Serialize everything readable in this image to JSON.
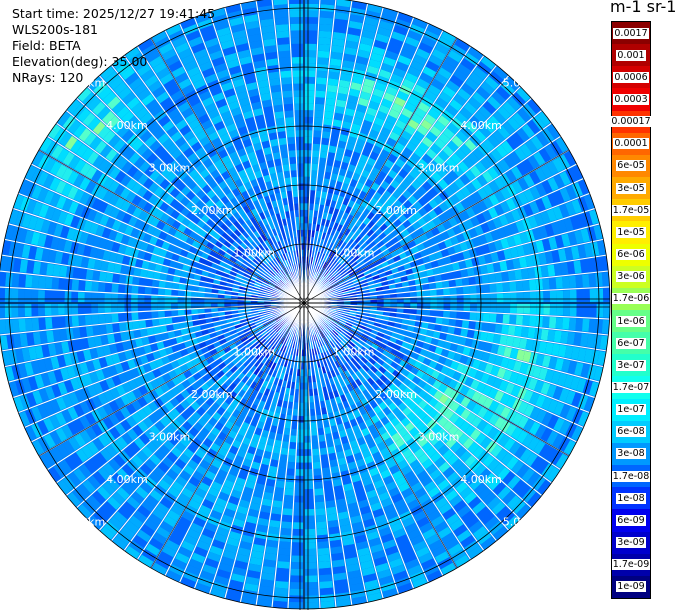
{
  "info": {
    "start_time": "Start time: 2025/12/27 19:41:45",
    "device": "WLS200s-181",
    "field": "Field: BETA",
    "elevation": "Elevation(deg): 35.00",
    "nrays": "NRays: 120"
  },
  "colorbar": {
    "unit_label": "m-1 sr-1",
    "ticks": [
      "0.0017",
      "0.001",
      "0.0006",
      "0.0003",
      "0.00017",
      "0.0001",
      "6e-05",
      "3e-05",
      "1.7e-05",
      "1e-05",
      "6e-06",
      "3e-06",
      "1.7e-06",
      "1e-06",
      "6e-07",
      "3e-07",
      "1.7e-07",
      "1e-07",
      "6e-08",
      "3e-08",
      "1.7e-08",
      "1e-08",
      "6e-09",
      "3e-09",
      "1.7e-09",
      "1e-09"
    ],
    "colors": [
      "#8b0000",
      "#b00000",
      "#d40000",
      "#f00000",
      "#ff3300",
      "#ff6600",
      "#ff8800",
      "#ffaa00",
      "#ffcc00",
      "#ffee00",
      "#eeff00",
      "#ccff22",
      "#99ff55",
      "#66ff88",
      "#44ffaa",
      "#22ffcc",
      "#11ffee",
      "#00eeff",
      "#00ccff",
      "#0099ff",
      "#0066ff",
      "#0033ff",
      "#0000ee",
      "#0000cc",
      "#0000aa",
      "#000080"
    ]
  },
  "range_labels": [
    "1.00km",
    "2.00km",
    "3.00km",
    "4.00km",
    "5.00km"
  ]
}
